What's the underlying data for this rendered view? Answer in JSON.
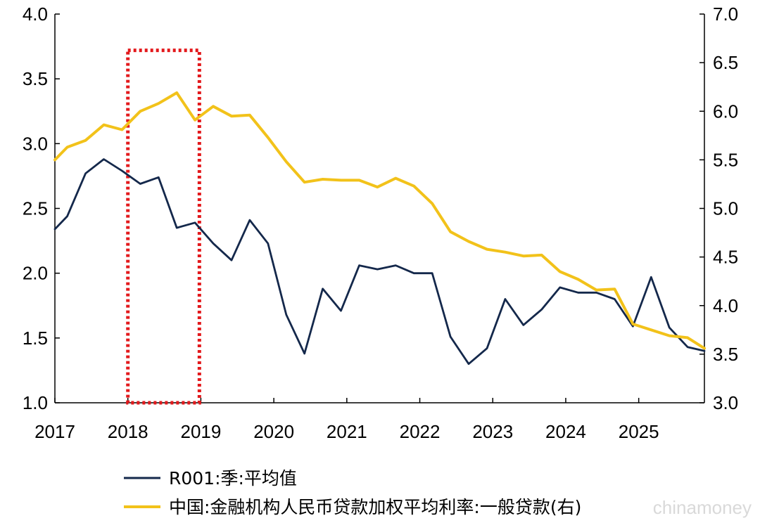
{
  "chart_data": {
    "type": "line",
    "title": "",
    "xlabel": "",
    "ylabel": "",
    "x_ticks": [
      "2017",
      "2018",
      "2019",
      "2020",
      "2021",
      "2022",
      "2023",
      "2024",
      "2025"
    ],
    "y_left": {
      "ticks": [
        "1.0",
        "1.5",
        "2.0",
        "2.5",
        "3.0",
        "3.5",
        "4.0"
      ],
      "ylim": [
        1.0,
        4.0
      ]
    },
    "y_right": {
      "ticks": [
        "3.0",
        "3.5",
        "4.0",
        "4.5",
        "5.0",
        "5.5",
        "6.0",
        "6.5",
        "7.0"
      ],
      "ylim": [
        3.0,
        7.0
      ]
    },
    "x_range": [
      2017.0,
      2025.9
    ],
    "grid": false,
    "legend_position": "bottom",
    "highlight_box": {
      "x_range": [
        2018.0,
        2018.98
      ],
      "y_range": [
        1.0,
        3.72
      ],
      "color": "#e3191c",
      "style": "dotted"
    },
    "series": [
      {
        "name": "R001:季:平均值",
        "axis": "left",
        "color": "#14284b",
        "x": [
          2017.0,
          2017.17,
          2017.42,
          2017.67,
          2017.92,
          2018.17,
          2018.42,
          2018.67,
          2018.92,
          2019.17,
          2019.42,
          2019.67,
          2019.92,
          2020.17,
          2020.42,
          2020.67,
          2020.92,
          2021.17,
          2021.42,
          2021.67,
          2021.92,
          2022.17,
          2022.42,
          2022.67,
          2022.92,
          2023.17,
          2023.42,
          2023.67,
          2023.92,
          2024.17,
          2024.42,
          2024.67,
          2024.92,
          2025.17,
          2025.42,
          2025.67,
          2025.9
        ],
        "values": [
          2.34,
          2.44,
          2.77,
          2.88,
          2.79,
          2.69,
          2.74,
          2.35,
          2.39,
          2.23,
          2.1,
          2.41,
          2.23,
          1.68,
          1.38,
          1.88,
          1.71,
          2.06,
          2.03,
          2.06,
          2.0,
          2.0,
          1.51,
          1.3,
          1.42,
          1.8,
          1.6,
          1.72,
          1.89,
          1.85,
          1.85,
          1.8,
          1.59,
          1.97,
          1.58,
          1.43,
          1.4
        ]
      },
      {
        "name": "中国:金融机构人民币贷款加权平均利率:一般贷款(右)",
        "axis": "right",
        "color": "#f2c21a",
        "x": [
          2017.0,
          2017.17,
          2017.42,
          2017.67,
          2017.92,
          2018.17,
          2018.42,
          2018.67,
          2018.92,
          2019.17,
          2019.42,
          2019.67,
          2019.92,
          2020.17,
          2020.42,
          2020.67,
          2020.92,
          2021.17,
          2021.42,
          2021.67,
          2021.92,
          2022.17,
          2022.42,
          2022.67,
          2022.92,
          2023.17,
          2023.42,
          2023.67,
          2023.92,
          2024.17,
          2024.42,
          2024.67,
          2024.92,
          2025.17,
          2025.42,
          2025.67,
          2025.9
        ],
        "values": [
          5.5,
          5.63,
          5.7,
          5.86,
          5.81,
          6.0,
          6.08,
          6.19,
          5.91,
          6.05,
          5.95,
          5.96,
          5.73,
          5.48,
          5.27,
          5.3,
          5.29,
          5.29,
          5.22,
          5.31,
          5.23,
          5.05,
          4.76,
          4.66,
          4.58,
          4.55,
          4.51,
          4.52,
          4.35,
          4.27,
          4.16,
          4.17,
          3.81,
          3.75,
          3.69,
          3.67,
          3.56
        ]
      }
    ]
  },
  "watermark": "chinamoney"
}
